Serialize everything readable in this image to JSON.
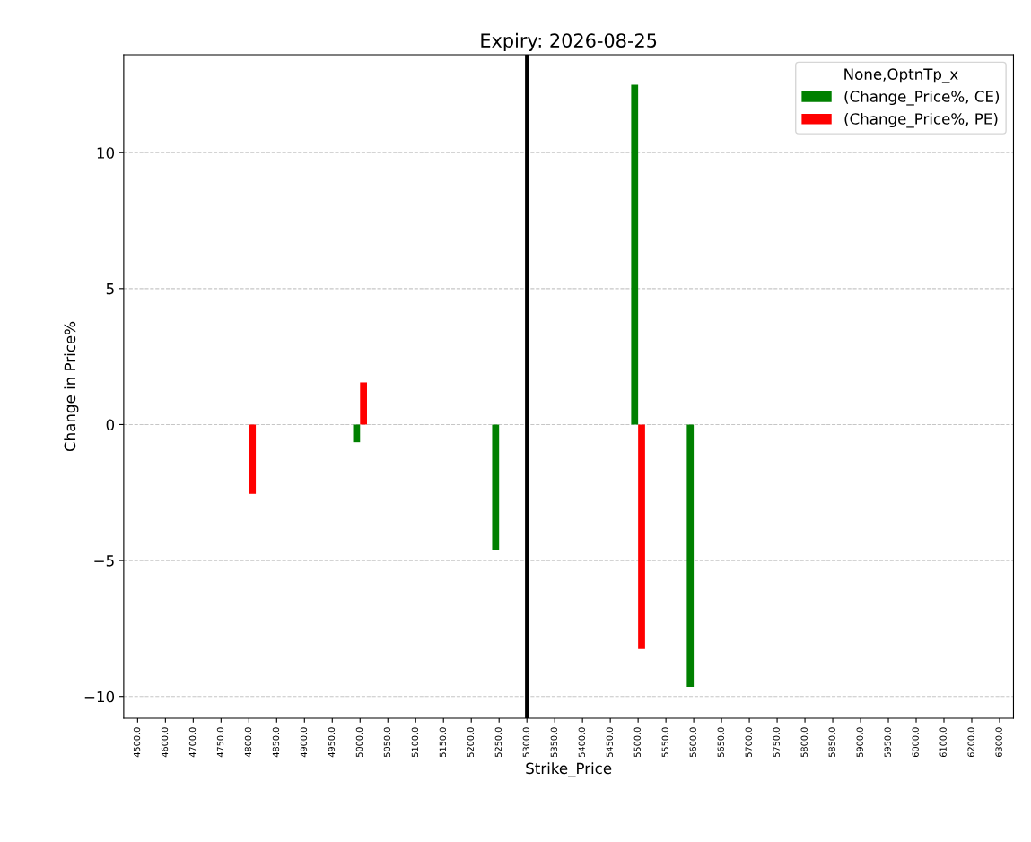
{
  "chart_data": {
    "type": "bar",
    "title": "Expiry: 2026-08-25",
    "xlabel": "Strike_Price",
    "ylabel": "Change in Price%",
    "legend_title": "None,OptnTp_x",
    "categories": [
      "4500.0",
      "4600.0",
      "4700.0",
      "4750.0",
      "4800.0",
      "4850.0",
      "4900.0",
      "4950.0",
      "5000.0",
      "5050.0",
      "5100.0",
      "5150.0",
      "5200.0",
      "5250.0",
      "5300.0",
      "5350.0",
      "5400.0",
      "5450.0",
      "5500.0",
      "5550.0",
      "5600.0",
      "5650.0",
      "5700.0",
      "5750.0",
      "5800.0",
      "5850.0",
      "5900.0",
      "5950.0",
      "6000.0",
      "6100.0",
      "6200.0",
      "6300.0"
    ],
    "series": [
      {
        "name": "(Change_Price%, CE)",
        "color": "#008000",
        "values": [
          null,
          null,
          null,
          null,
          null,
          null,
          null,
          null,
          -0.65,
          null,
          null,
          null,
          null,
          -4.6,
          null,
          null,
          null,
          null,
          12.5,
          null,
          -9.65,
          null,
          null,
          null,
          null,
          null,
          null,
          null,
          null,
          null,
          null,
          null
        ]
      },
      {
        "name": "(Change_Price%, PE)",
        "color": "#ff0000",
        "values": [
          null,
          null,
          null,
          null,
          -2.55,
          null,
          null,
          null,
          1.55,
          null,
          null,
          null,
          null,
          null,
          null,
          null,
          null,
          null,
          -8.25,
          null,
          null,
          null,
          null,
          null,
          null,
          null,
          null,
          null,
          null,
          null,
          null,
          null
        ]
      }
    ],
    "ylim": [
      -10.8,
      13.6
    ],
    "yticks": [
      {
        "value": -10,
        "label": "−10"
      },
      {
        "value": -5,
        "label": "−5"
      },
      0,
      5,
      10
    ],
    "ref_lines": [
      {
        "axis": "x",
        "value": "5300.0",
        "color": "#000000"
      }
    ],
    "grid": "y",
    "legend": "top right"
  }
}
